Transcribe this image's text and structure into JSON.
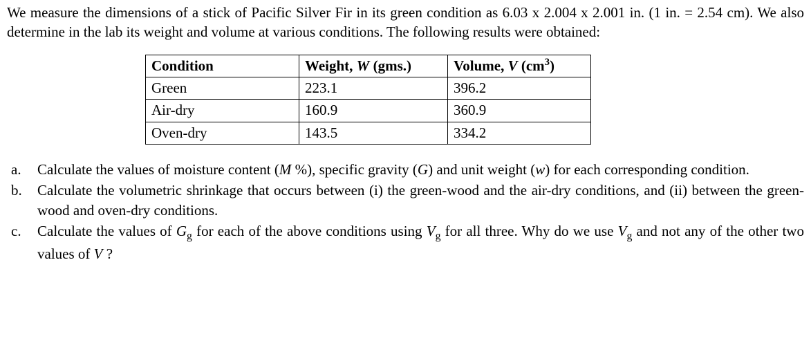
{
  "intro": {
    "text": "We measure the dimensions of a stick of Pacific Silver Fir in its green condition as 6.03 x 2.004 x 2.001 in. (1 in. = 2.54 cm). We also determine in the lab its weight and volume at various conditions. The following results were obtained:"
  },
  "table": {
    "headers": {
      "condition": "Condition",
      "weight_prefix": "Weight, ",
      "weight_sym": "W",
      "weight_suffix": " (gms.)",
      "volume_prefix": "Volume, ",
      "volume_sym": "V",
      "volume_suffix_open": " (cm",
      "volume_sup": "3",
      "volume_suffix_close": ")"
    },
    "rows": [
      {
        "condition": "Green",
        "weight": "223.1",
        "volume": "396.2"
      },
      {
        "condition": "Air-dry",
        "weight": "160.9",
        "volume": "360.9"
      },
      {
        "condition": "Oven-dry",
        "weight": "143.5",
        "volume": "334.2"
      }
    ]
  },
  "questions": {
    "a": {
      "marker": "a.",
      "pre1": "Calculate the values of moisture content (",
      "m_sym": "M",
      "m_pct": " %",
      "mid1": "), specific gravity (",
      "g_sym": "G",
      "mid2": ") and unit weight (",
      "w_sym": "w",
      "post": ") for each corresponding condition."
    },
    "b": {
      "marker": "b.",
      "text": "Calculate the volumetric shrinkage that occurs between (i) the green-wood and the air-dry conditions, and (ii) between the green-wood and oven-dry conditions."
    },
    "c": {
      "marker": "c.",
      "pre": "Calculate the values of ",
      "g_sym": "G",
      "g_sub": "g",
      "mid1": " for each of the above conditions using ",
      "v_sym": "V",
      "v_sub": "g",
      "mid2": " for all three. Why do we use ",
      "v2_sym": "V",
      "v2_sub": "g",
      "mid3": " and not any of the other two values of ",
      "v3_sym": "V",
      "post": " ?"
    }
  }
}
